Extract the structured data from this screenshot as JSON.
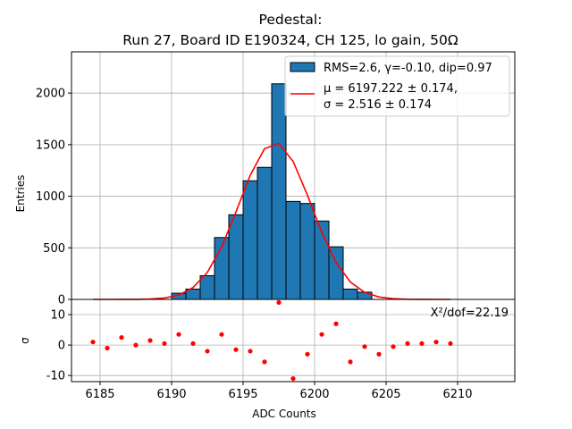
{
  "chart_data": [
    {
      "type": "histogram",
      "title_line1": "Pedestal:",
      "title_line2": "Run 27, Board ID E190324, CH 125, lo gain, 50Ω",
      "xlabel": "",
      "ylabel": "Entries",
      "xlim": [
        6183,
        6214
      ],
      "ylim": [
        0,
        2400
      ],
      "yticks": [
        0,
        500,
        1000,
        1500,
        2000
      ],
      "grid": true,
      "bar_color": "#1f77b4",
      "bars": [
        {
          "x": 6190,
          "value": 60
        },
        {
          "x": 6191,
          "value": 100
        },
        {
          "x": 6192,
          "value": 230
        },
        {
          "x": 6193,
          "value": 600
        },
        {
          "x": 6194,
          "value": 820
        },
        {
          "x": 6195,
          "value": 1150
        },
        {
          "x": 6196,
          "value": 1280
        },
        {
          "x": 6197,
          "value": 2090
        },
        {
          "x": 6198,
          "value": 950
        },
        {
          "x": 6199,
          "value": 930
        },
        {
          "x": 6200,
          "value": 760
        },
        {
          "x": 6201,
          "value": 510
        },
        {
          "x": 6202,
          "value": 100
        },
        {
          "x": 6203,
          "value": 70
        }
      ],
      "fit_color": "#ff0000",
      "fit": {
        "mu": 6197.222,
        "sigma": 2.516,
        "amplitude": 1522,
        "x_from": 6184.5,
        "x_to": 6209.5
      },
      "legend": {
        "position": "top-right",
        "hist_label": "RMS=2.6, γ=-0.10, dip=0.97",
        "fit_label_line1": "μ = 6197.222 ± 0.174,",
        "fit_label_line2": "σ = 2.516 ± 0.174"
      }
    },
    {
      "type": "scatter",
      "xlabel": "ADC Counts",
      "ylabel": "σ",
      "xlim": [
        6183,
        6214
      ],
      "ylim": [
        -12,
        15
      ],
      "xticks": [
        6185,
        6190,
        6195,
        6200,
        6205,
        6210
      ],
      "yticks": [
        -10,
        0,
        10
      ],
      "grid": true,
      "point_color": "#ff0000",
      "annotation": "X²/dof=22.19",
      "points": [
        {
          "x": 6184.5,
          "y": 1.0
        },
        {
          "x": 6185.5,
          "y": -1.0
        },
        {
          "x": 6186.5,
          "y": 2.5
        },
        {
          "x": 6187.5,
          "y": 0.0
        },
        {
          "x": 6188.5,
          "y": 1.5
        },
        {
          "x": 6189.5,
          "y": 0.5
        },
        {
          "x": 6190.5,
          "y": 3.5
        },
        {
          "x": 6191.5,
          "y": 0.5
        },
        {
          "x": 6192.5,
          "y": -2.0
        },
        {
          "x": 6193.5,
          "y": 3.5
        },
        {
          "x": 6194.5,
          "y": -1.5
        },
        {
          "x": 6195.5,
          "y": -2.0
        },
        {
          "x": 6196.5,
          "y": -5.5
        },
        {
          "x": 6197.5,
          "y": 14.0
        },
        {
          "x": 6198.5,
          "y": -11.0
        },
        {
          "x": 6199.5,
          "y": -3.0
        },
        {
          "x": 6200.5,
          "y": 3.5
        },
        {
          "x": 6201.5,
          "y": 7.0
        },
        {
          "x": 6202.5,
          "y": -5.5
        },
        {
          "x": 6203.5,
          "y": -0.5
        },
        {
          "x": 6204.5,
          "y": -3.0
        },
        {
          "x": 6205.5,
          "y": -0.5
        },
        {
          "x": 6206.5,
          "y": 0.5
        },
        {
          "x": 6207.5,
          "y": 0.5
        },
        {
          "x": 6208.5,
          "y": 1.0
        },
        {
          "x": 6209.5,
          "y": 0.5
        }
      ]
    }
  ]
}
